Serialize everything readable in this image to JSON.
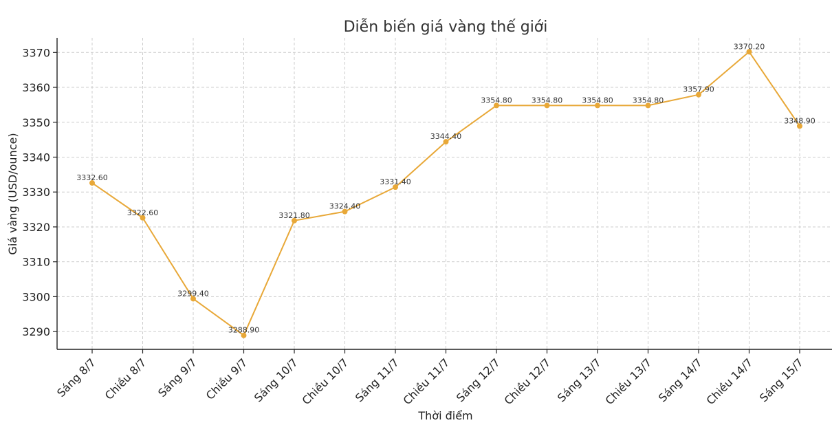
{
  "chart_data": {
    "type": "line",
    "title": "Diễn biến giá vàng thế giới",
    "xlabel": "Thời điểm",
    "ylabel": "Giá vàng (USD/ounce)",
    "categories": [
      "Sáng 8/7",
      "Chiều 8/7",
      "Sáng 9/7",
      "Chiều 9/7",
      "Sáng 10/7",
      "Chiều 10/7",
      "Sáng 11/7",
      "Chiều 11/7",
      "Sáng 12/7",
      "Chiều 12/7",
      "Sáng 13/7",
      "Chiều 13/7",
      "Sáng 14/7",
      "Chiều 14/7",
      "Sáng 15/7"
    ],
    "series": [
      {
        "values": [
          3332.6,
          3322.6,
          3299.4,
          3288.9,
          3321.8,
          3324.4,
          3331.4,
          3344.4,
          3354.8,
          3354.8,
          3354.8,
          3354.8,
          3357.9,
          3370.2,
          3348.9
        ],
        "data_labels": [
          "3332.60",
          "3322.60",
          "3299.40",
          "3288.90",
          "3321.80",
          "3324.40",
          "3331.40",
          "3344.40",
          "3354.80",
          "3354.80",
          "3354.80",
          "3354.80",
          "3357.90",
          "3370.20",
          "3348.90"
        ],
        "color": "#E8A838"
      }
    ],
    "yticks": [
      "3290",
      "3300",
      "3310",
      "3320",
      "3330",
      "3340",
      "3350",
      "3360",
      "3370"
    ],
    "ylim": [
      3284.9,
      3374.2
    ],
    "grid": true,
    "legend": "none"
  }
}
